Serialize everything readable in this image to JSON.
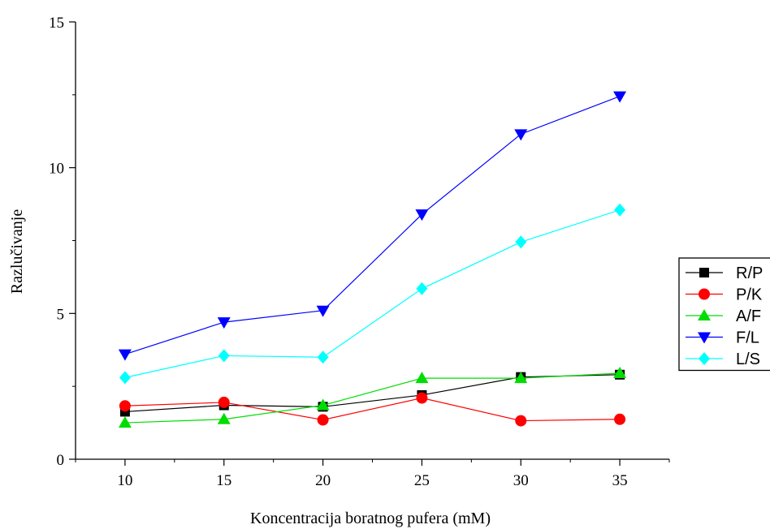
{
  "chart_data": {
    "type": "line",
    "xlabel": "Koncentracija boratnog pufera (mM)",
    "ylabel": "Razlučivanje",
    "x": [
      10,
      15,
      20,
      25,
      30,
      35
    ],
    "xlim": [
      7.5,
      37.5
    ],
    "ylim": [
      0,
      15
    ],
    "xticks": [
      10,
      15,
      20,
      25,
      30,
      35
    ],
    "yticks": [
      0,
      5,
      10,
      15
    ],
    "grid": false,
    "legend_position": "right",
    "series": [
      {
        "name": "R/P",
        "color": "#000000",
        "marker": "square",
        "values": [
          1.63,
          1.85,
          1.8,
          2.2,
          2.82,
          2.9
        ]
      },
      {
        "name": "P/K",
        "color": "#ff0000",
        "marker": "circle",
        "values": [
          1.83,
          1.95,
          1.35,
          2.1,
          1.32,
          1.37
        ]
      },
      {
        "name": "A/F",
        "color": "#00dd00",
        "marker": "triangle-up",
        "values": [
          1.25,
          1.37,
          1.85,
          2.78,
          2.78,
          2.95
        ]
      },
      {
        "name": "F/L",
        "color": "#0000ff",
        "marker": "triangle-down",
        "values": [
          3.6,
          4.7,
          5.1,
          8.4,
          11.15,
          12.45
        ]
      },
      {
        "name": "L/S",
        "color": "#00ffff",
        "marker": "diamond",
        "values": [
          2.8,
          3.55,
          3.5,
          5.85,
          7.45,
          8.55
        ]
      }
    ]
  }
}
